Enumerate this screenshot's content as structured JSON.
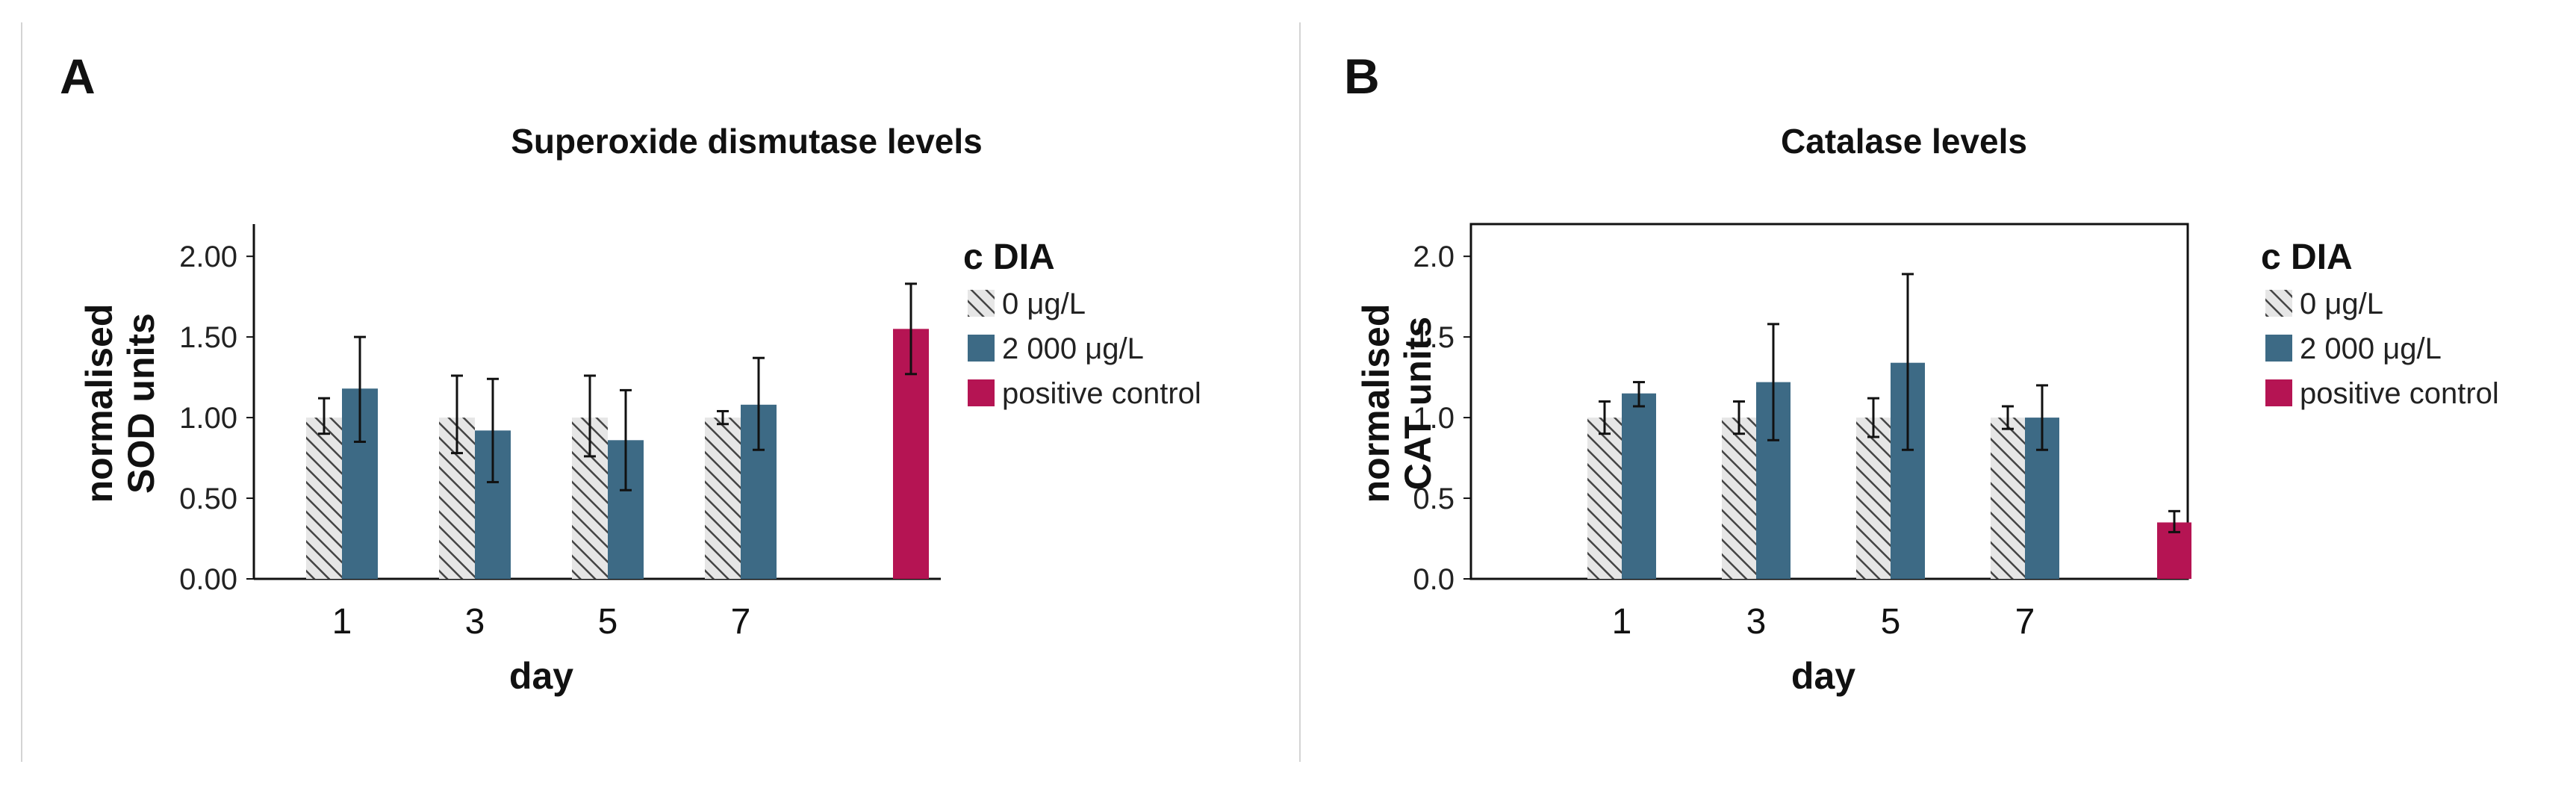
{
  "figure": {
    "legend_title": "c DIA",
    "legend_items": [
      {
        "label": "0 μg/L",
        "key": "hatch"
      },
      {
        "label": "2 000 μg/L",
        "key": "blue"
      },
      {
        "label": "positive control",
        "key": "red"
      }
    ],
    "colors": {
      "control_hatch": "#444444",
      "treatment": "#3d6a85",
      "positive_control": "#b51453",
      "axis": "#111111",
      "error_bar": "#111111"
    }
  },
  "chart_data": [
    {
      "panel": "A",
      "type": "bar",
      "title": "Superoxide dismutase levels",
      "xlabel": "day",
      "ylabel": [
        "normalised",
        "SOD units"
      ],
      "ylim": [
        0,
        2.2
      ],
      "yticks": [
        0,
        0.5,
        1,
        1.5,
        2
      ],
      "ytick_labels": [
        "0.00",
        "0.50",
        "1.00",
        "1.50",
        "2.00"
      ],
      "box": "left-bottom",
      "categories": [
        "1",
        "3",
        "5",
        "7",
        ""
      ],
      "series": [
        {
          "name": "0 μg/L",
          "values": [
            1.0,
            1.0,
            1.0,
            1.0,
            null
          ],
          "err_low": [
            0.9,
            0.78,
            0.76,
            0.96,
            null
          ],
          "err_high": [
            1.12,
            1.26,
            1.26,
            1.04,
            null
          ]
        },
        {
          "name": "2 000 μg/L",
          "values": [
            1.18,
            0.92,
            0.86,
            1.08,
            null
          ],
          "err_low": [
            0.85,
            0.6,
            0.55,
            0.8,
            null
          ],
          "err_high": [
            1.5,
            1.24,
            1.17,
            1.37,
            null
          ]
        },
        {
          "name": "positive control",
          "values": [
            null,
            null,
            null,
            null,
            1.55
          ],
          "err_low": [
            null,
            null,
            null,
            null,
            1.27
          ],
          "err_high": [
            null,
            null,
            null,
            null,
            1.83
          ]
        }
      ]
    },
    {
      "panel": "B",
      "type": "bar",
      "title": "Catalase levels",
      "xlabel": "day",
      "ylabel": [
        "normalised",
        "CAT units"
      ],
      "ylim": [
        0,
        2.2
      ],
      "yticks": [
        0,
        0.5,
        1,
        1.5,
        2
      ],
      "ytick_labels": [
        "0.0",
        "0.5",
        "1.0",
        "1.5",
        "2.0"
      ],
      "box": "full",
      "categories": [
        "1",
        "3",
        "5",
        "7",
        ""
      ],
      "series": [
        {
          "name": "0 μg/L",
          "values": [
            1.0,
            1.0,
            1.0,
            1.0,
            null
          ],
          "err_low": [
            0.9,
            0.9,
            0.88,
            0.93,
            null
          ],
          "err_high": [
            1.1,
            1.1,
            1.12,
            1.07,
            null
          ]
        },
        {
          "name": "2 000 μg/L",
          "values": [
            1.15,
            1.22,
            1.34,
            1.0,
            null
          ],
          "err_low": [
            1.07,
            0.86,
            0.8,
            0.8,
            null
          ],
          "err_high": [
            1.22,
            1.58,
            1.89,
            1.2,
            null
          ]
        },
        {
          "name": "positive control",
          "values": [
            null,
            null,
            null,
            null,
            0.35
          ],
          "err_low": [
            null,
            null,
            null,
            null,
            0.29
          ],
          "err_high": [
            null,
            null,
            null,
            null,
            0.42
          ]
        }
      ]
    }
  ]
}
